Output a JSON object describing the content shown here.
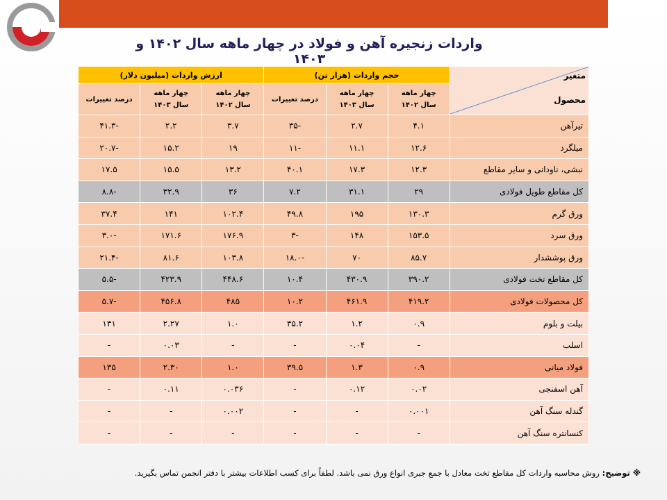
{
  "header": {
    "title": "واردات زنجیره آهن و فولاد در چهار ماهه سال ۱۴۰۲ و ۱۴۰۳"
  },
  "table": {
    "corner_top": "متغیر",
    "corner_bottom": "محصول",
    "groups": [
      "حجم واردات (هزار تن)",
      "ارزش واردات (میلیون دلار)"
    ],
    "subheaders": [
      [
        "چهار ماهه",
        "سال ۱۴۰۲"
      ],
      [
        "چهار ماهه",
        "سال ۱۴۰۳"
      ],
      [
        "درصد تغییرات"
      ],
      [
        "چهار ماهه",
        "سال ۱۴۰۲"
      ],
      [
        "چهار ماهه",
        "سال ۱۴۰۳"
      ],
      [
        "درصد تغییرات"
      ]
    ],
    "rows": [
      {
        "label": "تیرآهن",
        "color": "#f8cbad",
        "cells": [
          "۴.۱",
          "۲.۷",
          "۳۵-",
          "۳.۷",
          "۲.۲",
          "۴۱.۳-"
        ]
      },
      {
        "label": "میلگرد",
        "color": "#f8cbad",
        "cells": [
          "۱۲.۶",
          "۱۱.۱",
          "۱۱-",
          "۱۹",
          "۱۵.۲",
          "۲۰.۷-"
        ]
      },
      {
        "label": "نبشی، ناودانی و سایر مقاطع",
        "color": "#f8cbad",
        "cells": [
          "۱۲.۳",
          "۱۷.۳",
          "۴۰.۱",
          "۱۳.۲",
          "۱۵.۵",
          "۱۷.۵"
        ]
      },
      {
        "label": "کل مقاطع طویل فولادی",
        "color": "#bfbfbf",
        "cells": [
          "۲۹",
          "۳۱.۱",
          "۷.۲",
          "۳۶",
          "۳۲.۹",
          "۸.۸-"
        ]
      },
      {
        "label": "ورق گرم",
        "color": "#f8cbad",
        "cells": [
          "۱۳۰.۳",
          "۱۹۵",
          "۴۹.۸",
          "۱۰۲.۴",
          "۱۴۱",
          "۳۷.۴"
        ]
      },
      {
        "label": "ورق سرد",
        "color": "#f8cbad",
        "cells": [
          "۱۵۳.۵",
          "۱۴۸",
          "۳-",
          "۱۷۶.۹",
          "۱۷۱.۶",
          "۳.۰-"
        ]
      },
      {
        "label": "ورق پوششدار",
        "color": "#f8cbad",
        "cells": [
          "۸۵.۷",
          "۷۰",
          "۱۸.۰-",
          "۱۰۳.۸",
          "۸۱.۶",
          "۲۱.۴-"
        ]
      },
      {
        "label": "کل مقاطع تخت فولادی",
        "color": "#bfbfbf",
        "cells": [
          "۳۹۰.۲",
          "۴۳۰.۹",
          "۱۰.۴",
          "۴۴۸.۶",
          "۴۲۳.۹",
          "۵.۵-"
        ]
      },
      {
        "label": "کل محصولات فولادی",
        "color": "#f4a07e",
        "cells": [
          "۴۱۹.۲",
          "۴۶۱.۹",
          "۱۰.۲",
          "۴۸۵",
          "۴۵۶.۸",
          "۵.۷-"
        ]
      },
      {
        "label": "بیلت و بلوم",
        "color": "#fbe0d4",
        "cells": [
          "۰.۹",
          "۱.۲",
          "۳۵.۲",
          "۱.۰",
          "۲.۲۷",
          "۱۳۱"
        ]
      },
      {
        "label": "اسلب",
        "color": "#fbe0d4",
        "cells": [
          "-",
          "۰.۰۴",
          "-",
          "-",
          "۰.۰۳",
          "-"
        ]
      },
      {
        "label": "فولاد میانی",
        "color": "#f4a07e",
        "cells": [
          "۰.۹",
          "۱.۳",
          "۳۹.۵",
          "۱.۰",
          "۲.۳۰",
          "۱۳۵"
        ]
      },
      {
        "label": "آهن اسفنجی",
        "color": "#fbe0d4",
        "cells": [
          "۰.۰۲",
          "۰.۱۲",
          "-",
          "۰.۰۳۶",
          "۰.۱۱",
          "-"
        ]
      },
      {
        "label": "گندله سنگ آهن",
        "color": "#fbe0d4",
        "cells": [
          "۰.۰۰۱",
          "-",
          "-",
          "۰.۰۰۲",
          "-",
          "-"
        ]
      },
      {
        "label": "کنسانتره سنگ آهن",
        "color": "#fbe0d4",
        "cells": [
          "-",
          "-",
          "-",
          "-",
          "-",
          "-"
        ]
      }
    ]
  },
  "footnote": {
    "label": "※ توضیح:",
    "text": "روش محاسبه واردات کل مقاطع تخت معادل با جمع جبری انواع ورق نمی باشد. لطفاً برای کسب اطلاعات بیشتر با دفتر انجمن تماس بگیرید."
  }
}
